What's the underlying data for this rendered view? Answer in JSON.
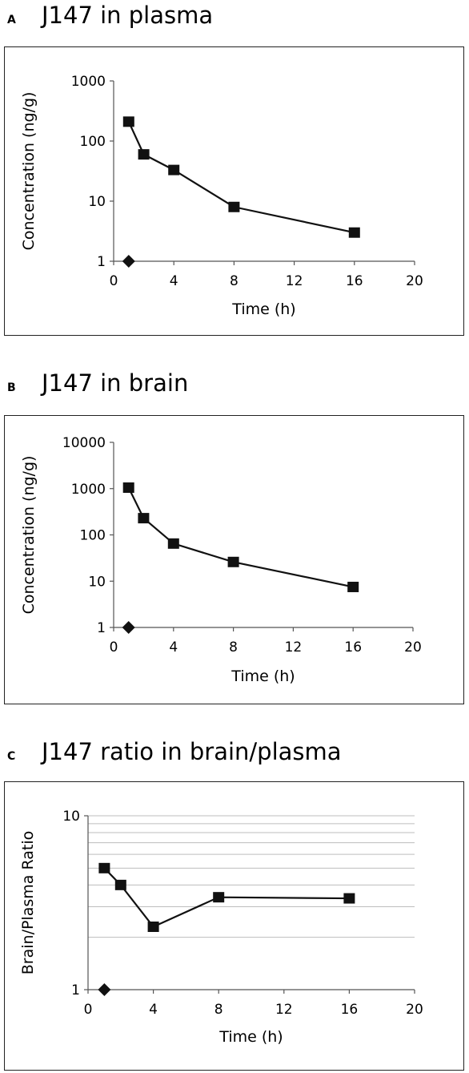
{
  "panels": [
    {
      "letter": "A",
      "title": "J147 in plasma"
    },
    {
      "letter": "B",
      "title": "J147 in brain"
    },
    {
      "letter": "C",
      "title": "J147 ratio in brain/plasma"
    }
  ],
  "chart_data": [
    {
      "type": "line",
      "title": "J147 in plasma",
      "xlabel": "Time (h)",
      "ylabel": "Concentration (ng/g)",
      "xlim": [
        0,
        20
      ],
      "xticks": [
        0,
        4,
        8,
        12,
        16,
        20
      ],
      "ylim": [
        1,
        1000
      ],
      "yscale": "log",
      "yticks": [
        1,
        10,
        100,
        1000
      ],
      "grid": false,
      "series": [
        {
          "marker": "square",
          "x": [
            1,
            2,
            4,
            8,
            16
          ],
          "y": [
            210,
            60,
            33,
            8,
            3
          ]
        },
        {
          "marker": "diamond",
          "x": [
            1
          ],
          "y": [
            1
          ]
        }
      ]
    },
    {
      "type": "line",
      "title": "J147 in brain",
      "xlabel": "Time (h)",
      "ylabel": "Concentration (ng/g)",
      "xlim": [
        0,
        20
      ],
      "xticks": [
        0,
        4,
        8,
        12,
        16,
        20
      ],
      "ylim": [
        1,
        10000
      ],
      "yscale": "log",
      "yticks": [
        1,
        10,
        100,
        1000,
        10000
      ],
      "grid": false,
      "series": [
        {
          "marker": "square",
          "x": [
            1,
            2,
            4,
            8,
            16
          ],
          "y": [
            1050,
            230,
            65,
            26,
            7.5
          ]
        },
        {
          "marker": "diamond",
          "x": [
            1
          ],
          "y": [
            1
          ]
        }
      ]
    },
    {
      "type": "line",
      "title": "J147 ratio in brain/plasma",
      "xlabel": "Time (h)",
      "ylabel": "Brain/Plasma Ratio",
      "xlim": [
        0,
        20
      ],
      "xticks": [
        0,
        4,
        8,
        12,
        16,
        20
      ],
      "ylim": [
        1,
        10
      ],
      "yscale": "log",
      "yticks": [
        1,
        10
      ],
      "grid": true,
      "series": [
        {
          "marker": "square",
          "x": [
            1,
            2,
            4,
            8,
            16
          ],
          "y": [
            5,
            4,
            2.3,
            3.4,
            3.35
          ]
        },
        {
          "marker": "diamond",
          "x": [
            1
          ],
          "y": [
            1
          ]
        }
      ]
    }
  ]
}
